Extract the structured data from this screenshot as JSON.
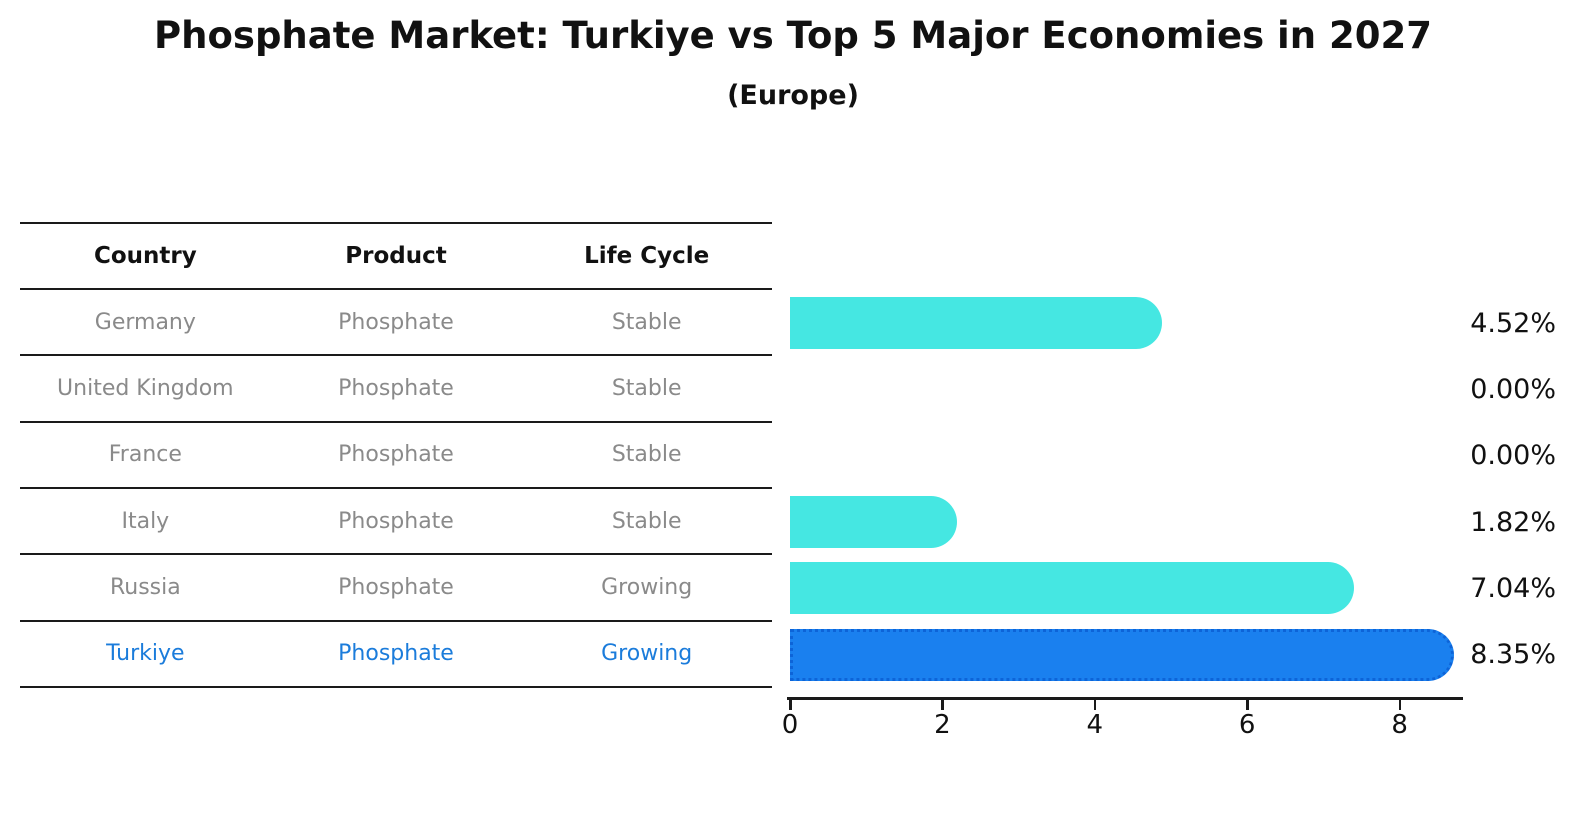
{
  "title": "Phosphate Market: Turkiye vs Top 5 Major Economies in 2027",
  "subtitle": "(Europe)",
  "table": {
    "headers": [
      "Country",
      "Product",
      "Life Cycle"
    ]
  },
  "chart_data": {
    "type": "bar",
    "orientation": "horizontal",
    "title": "Phosphate Market: Turkiye vs Top 5 Major Economies in 2027",
    "subtitle": "(Europe)",
    "categories": [
      "Germany",
      "United Kingdom",
      "France",
      "Italy",
      "Russia",
      "Turkiye"
    ],
    "values": [
      4.52,
      0.0,
      0.0,
      1.82,
      7.04,
      8.35
    ],
    "value_labels": [
      "4.52%",
      "0.00%",
      "0.00%",
      "1.82%",
      "7.04%",
      "8.35%"
    ],
    "rows": [
      {
        "country": "Germany",
        "product": "Phosphate",
        "life_cycle": "Stable",
        "value": 4.52,
        "label": "4.52%",
        "highlight": false
      },
      {
        "country": "United Kingdom",
        "product": "Phosphate",
        "life_cycle": "Stable",
        "value": 0.0,
        "label": "0.00%",
        "highlight": false
      },
      {
        "country": "France",
        "product": "Phosphate",
        "life_cycle": "Stable",
        "value": 0.0,
        "label": "0.00%",
        "highlight": false
      },
      {
        "country": "Italy",
        "product": "Phosphate",
        "life_cycle": "Stable",
        "value": 1.82,
        "label": "1.82%",
        "highlight": false
      },
      {
        "country": "Russia",
        "product": "Phosphate",
        "life_cycle": "Growing",
        "value": 7.04,
        "label": "7.04%",
        "highlight": false
      },
      {
        "country": "Turkiye",
        "product": "Phosphate",
        "life_cycle": "Growing",
        "value": 8.35,
        "label": "8.35%",
        "highlight": true
      }
    ],
    "xticks": [
      0,
      2,
      4,
      6,
      8
    ],
    "xlim": [
      0,
      8.8
    ],
    "grid": false,
    "legend": false,
    "highlight_index": 5
  },
  "colors": {
    "bar": "#45e7e2",
    "highlight_bar": "#1a80ef",
    "highlight_bar_border": "#0d64d8",
    "highlight_text": "#1b7cdb",
    "row_text": "#8a8a8a",
    "heading_text": "#111111",
    "line": "#1a1a1a"
  }
}
